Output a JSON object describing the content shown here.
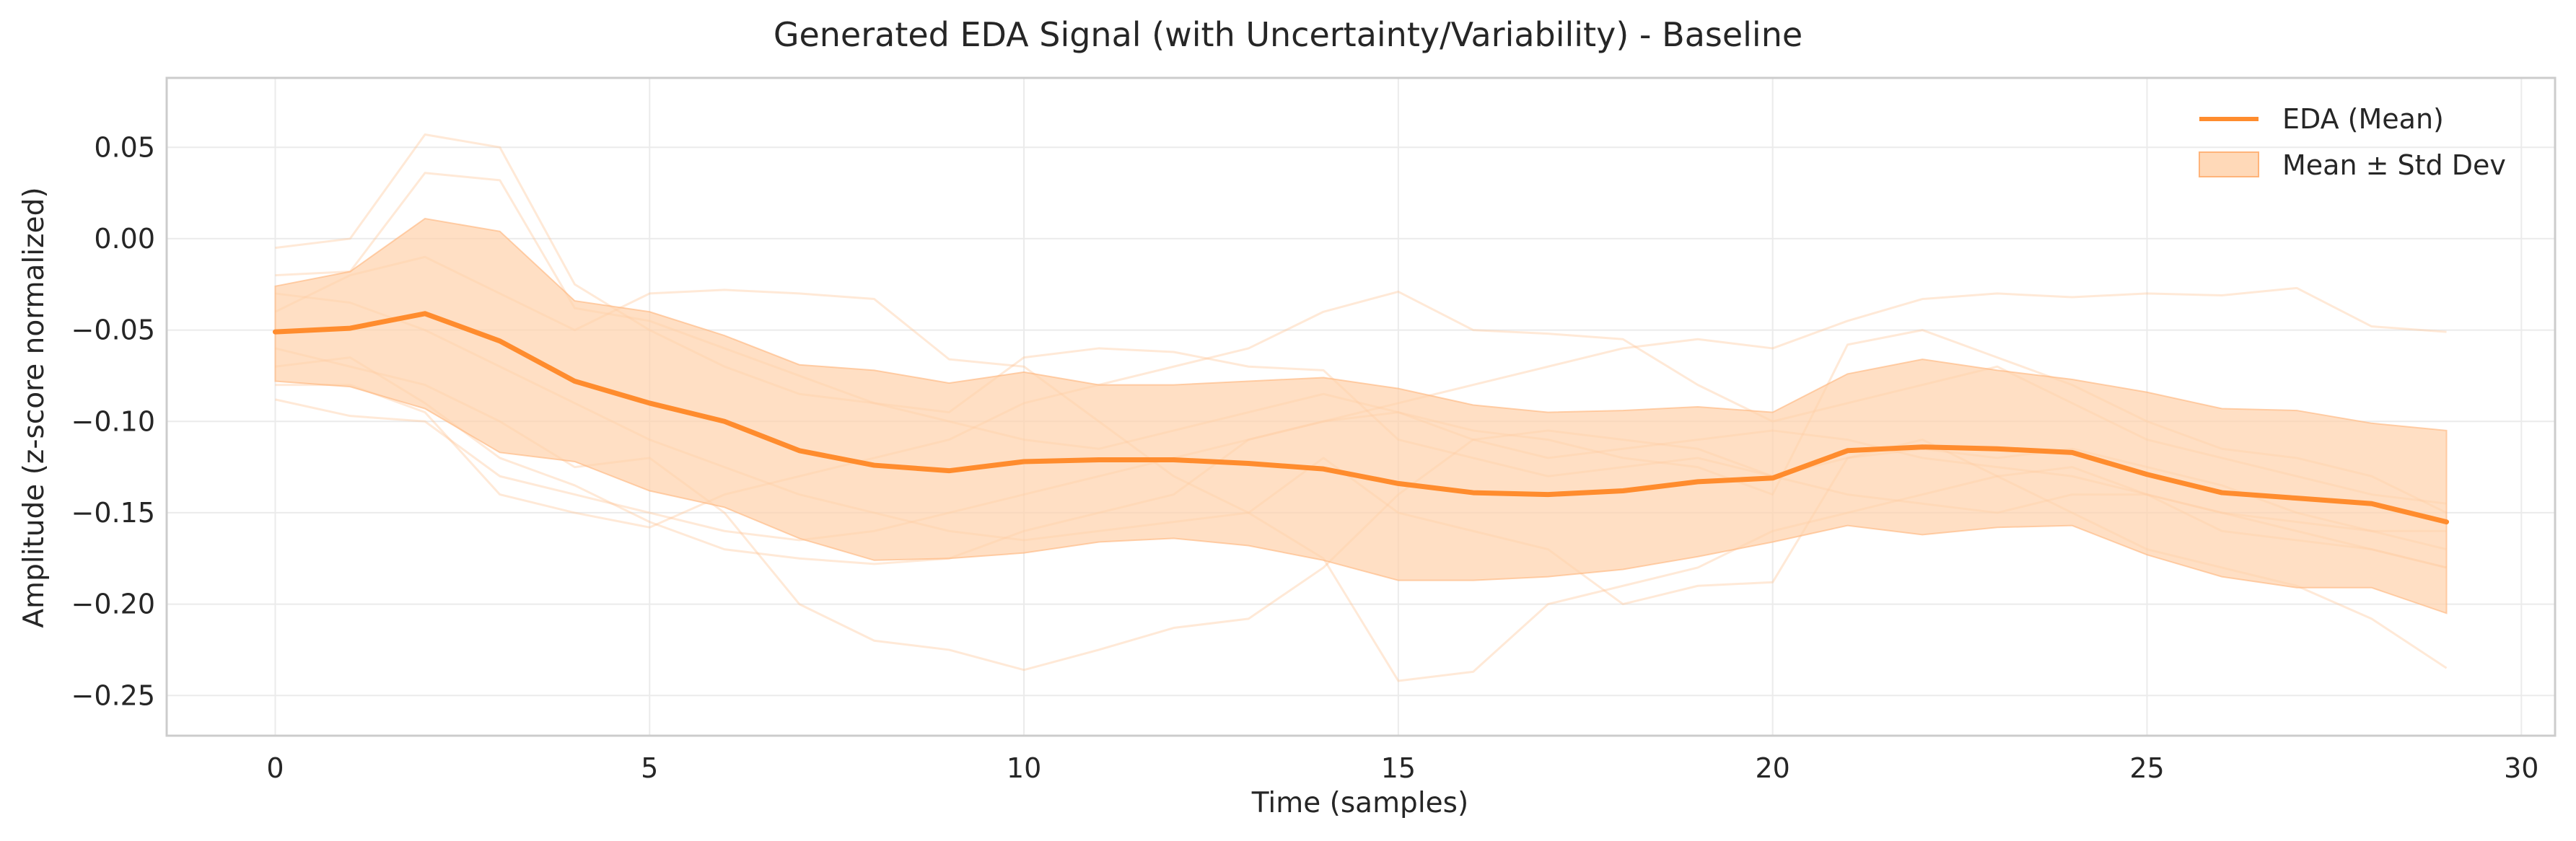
{
  "chart_data": {
    "type": "line",
    "title": "Generated EDA Signal (with Uncertainty/Variability) - Baseline",
    "xlabel": "Time (samples)",
    "ylabel": "Amplitude (z-score normalized)",
    "xlim": [
      -1.45,
      30.45
    ],
    "ylim": [
      -0.272,
      0.088
    ],
    "x_ticks": [
      0,
      5,
      10,
      15,
      20,
      25,
      30
    ],
    "y_ticks": [
      0.05,
      0.0,
      -0.05,
      -0.1,
      -0.15,
      -0.2,
      -0.25
    ],
    "x_tick_labels": [
      "0",
      "5",
      "10",
      "15",
      "20",
      "25",
      "30"
    ],
    "y_tick_labels": [
      "0.05",
      "0.00",
      "−0.05",
      "−0.10",
      "−0.15",
      "−0.20",
      "−0.25"
    ],
    "grid": true,
    "legend_position": "top-right",
    "colors": {
      "mean": "#ff8c2e",
      "band": "#ffd2ab",
      "band_edge": "#ffb47a",
      "samples": "#ffbf8c"
    },
    "x": [
      0,
      1,
      2,
      3,
      4,
      5,
      6,
      7,
      8,
      9,
      10,
      11,
      12,
      13,
      14,
      15,
      16,
      17,
      18,
      19,
      20,
      21,
      22,
      23,
      24,
      25,
      26,
      27,
      28,
      29
    ],
    "series": [
      {
        "name": "EDA (Mean)",
        "values": [
          -0.051,
          -0.049,
          -0.041,
          -0.056,
          -0.078,
          -0.09,
          -0.1,
          -0.116,
          -0.124,
          -0.127,
          -0.122,
          -0.121,
          -0.121,
          -0.123,
          -0.126,
          -0.134,
          -0.139,
          -0.14,
          -0.138,
          -0.133,
          -0.131,
          -0.116,
          -0.114,
          -0.115,
          -0.117,
          -0.129,
          -0.139,
          -0.142,
          -0.145,
          -0.155
        ]
      }
    ],
    "band": {
      "name": "Mean ± Std Dev",
      "upper": [
        -0.026,
        -0.018,
        0.011,
        0.004,
        -0.034,
        -0.04,
        -0.053,
        -0.069,
        -0.072,
        -0.079,
        -0.073,
        -0.08,
        -0.08,
        -0.078,
        -0.076,
        -0.082,
        -0.091,
        -0.095,
        -0.094,
        -0.092,
        -0.095,
        -0.074,
        -0.066,
        -0.072,
        -0.077,
        -0.084,
        -0.093,
        -0.094,
        -0.101,
        -0.105
      ],
      "lower": [
        -0.078,
        -0.081,
        -0.093,
        -0.117,
        -0.122,
        -0.138,
        -0.147,
        -0.164,
        -0.176,
        -0.175,
        -0.172,
        -0.166,
        -0.164,
        -0.168,
        -0.176,
        -0.187,
        -0.187,
        -0.185,
        -0.181,
        -0.174,
        -0.166,
        -0.157,
        -0.162,
        -0.158,
        -0.157,
        -0.173,
        -0.185,
        -0.191,
        -0.191,
        -0.205
      ]
    },
    "samples": [
      [
        -0.005,
        0.0,
        0.057,
        0.05,
        -0.025,
        -0.05,
        -0.07,
        -0.085,
        -0.09,
        -0.095,
        -0.065,
        -0.06,
        -0.062,
        -0.07,
        -0.072,
        -0.11,
        -0.12,
        -0.13,
        -0.125,
        -0.12,
        -0.13,
        -0.12,
        -0.115,
        -0.12,
        -0.115,
        -0.125,
        -0.135,
        -0.15,
        -0.16,
        -0.17
      ],
      [
        -0.02,
        -0.018,
        0.036,
        0.032,
        -0.038,
        -0.045,
        -0.06,
        -0.075,
        -0.09,
        -0.1,
        -0.11,
        -0.115,
        -0.105,
        -0.095,
        -0.085,
        -0.095,
        -0.105,
        -0.11,
        -0.12,
        -0.125,
        -0.14,
        -0.058,
        -0.05,
        -0.065,
        -0.08,
        -0.1,
        -0.115,
        -0.12,
        -0.13,
        -0.15
      ],
      [
        -0.04,
        -0.02,
        -0.01,
        -0.03,
        -0.05,
        -0.03,
        -0.028,
        -0.03,
        -0.033,
        -0.066,
        -0.07,
        -0.1,
        -0.13,
        -0.15,
        -0.12,
        -0.15,
        -0.16,
        -0.17,
        -0.2,
        -0.19,
        -0.188,
        -0.12,
        -0.11,
        -0.13,
        -0.15,
        -0.17,
        -0.18,
        -0.19,
        -0.208,
        -0.235
      ],
      [
        -0.06,
        -0.07,
        -0.08,
        -0.1,
        -0.125,
        -0.12,
        -0.15,
        -0.2,
        -0.22,
        -0.225,
        -0.236,
        -0.225,
        -0.213,
        -0.208,
        -0.18,
        -0.14,
        -0.11,
        -0.105,
        -0.11,
        -0.115,
        -0.13,
        -0.14,
        -0.145,
        -0.15,
        -0.14,
        -0.14,
        -0.15,
        -0.16,
        -0.17,
        -0.18
      ],
      [
        -0.07,
        -0.065,
        -0.09,
        -0.12,
        -0.135,
        -0.155,
        -0.17,
        -0.175,
        -0.178,
        -0.175,
        -0.16,
        -0.15,
        -0.14,
        -0.11,
        -0.1,
        -0.095,
        -0.11,
        -0.12,
        -0.115,
        -0.11,
        -0.105,
        -0.11,
        -0.12,
        -0.125,
        -0.13,
        -0.14,
        -0.15,
        -0.155,
        -0.16,
        -0.16
      ],
      [
        -0.08,
        -0.08,
        -0.095,
        -0.14,
        -0.15,
        -0.158,
        -0.14,
        -0.13,
        -0.12,
        -0.11,
        -0.09,
        -0.08,
        -0.07,
        -0.06,
        -0.04,
        -0.029,
        -0.05,
        -0.052,
        -0.055,
        -0.08,
        -0.1,
        -0.09,
        -0.08,
        -0.07,
        -0.09,
        -0.11,
        -0.12,
        -0.13,
        -0.14,
        -0.145
      ],
      [
        -0.088,
        -0.097,
        -0.1,
        -0.13,
        -0.14,
        -0.15,
        -0.16,
        -0.165,
        -0.16,
        -0.15,
        -0.14,
        -0.13,
        -0.12,
        -0.11,
        -0.1,
        -0.09,
        -0.08,
        -0.07,
        -0.06,
        -0.055,
        -0.06,
        -0.045,
        -0.033,
        -0.03,
        -0.032,
        -0.03,
        -0.031,
        -0.027,
        -0.048,
        -0.051
      ],
      [
        -0.03,
        -0.035,
        -0.05,
        -0.07,
        -0.09,
        -0.11,
        -0.125,
        -0.14,
        -0.15,
        -0.16,
        -0.165,
        -0.16,
        -0.155,
        -0.15,
        -0.175,
        -0.242,
        -0.237,
        -0.2,
        -0.19,
        -0.18,
        -0.16,
        -0.15,
        -0.14,
        -0.13,
        -0.125,
        -0.14,
        -0.16,
        -0.165,
        -0.17,
        -0.18
      ]
    ],
    "legend": [
      {
        "label": "EDA (Mean)",
        "kind": "line"
      },
      {
        "label": "Mean ± Std Dev",
        "kind": "patch"
      }
    ]
  }
}
